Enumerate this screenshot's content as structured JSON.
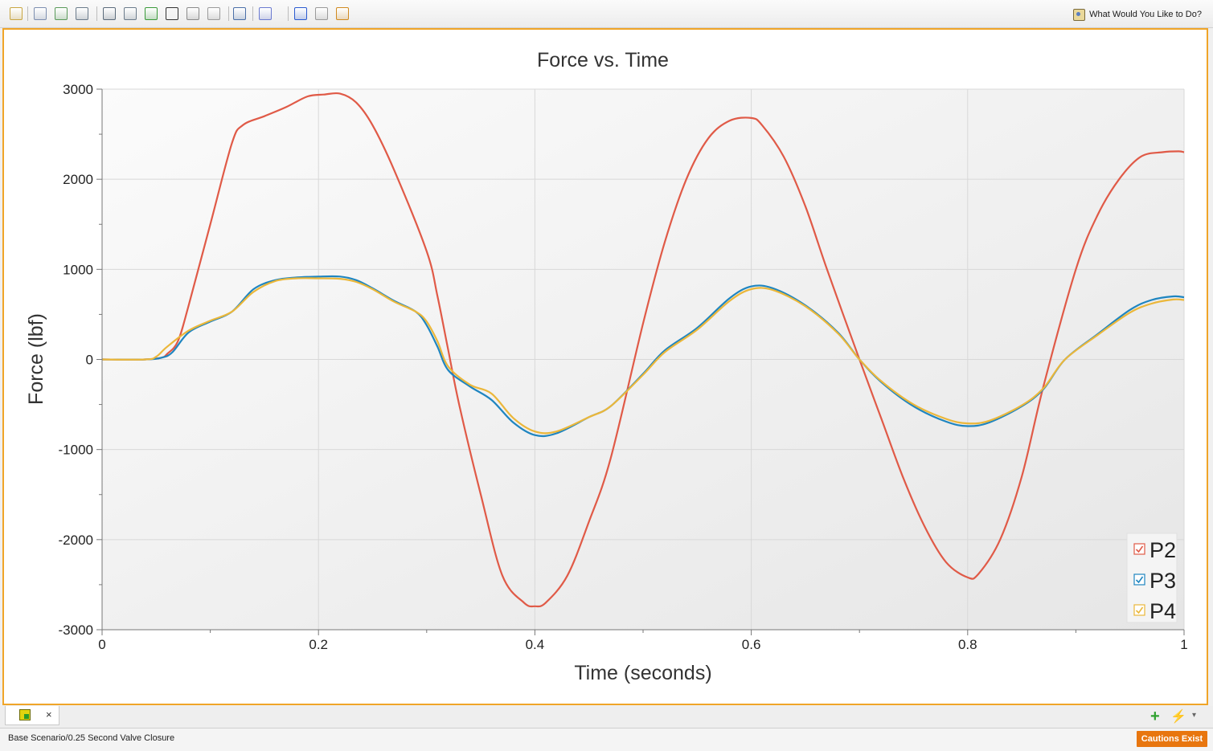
{
  "toolbar": {
    "buttons": [
      "edit-icon",
      "copy-icon",
      "export-icon",
      "table-icon",
      "chart-text-icon",
      "list-icon",
      "checklist-icon",
      "crosshair-icon",
      "ruler-icon",
      "stop-icon",
      "zoom-icon",
      "paint-icon",
      "add-icon",
      "graph-icon",
      "alert-icon"
    ],
    "help_label": "What Would You Like to Do?"
  },
  "chart_data": {
    "type": "line",
    "title": "Force vs. Time",
    "xlabel": "Time (seconds)",
    "ylabel": "Force (lbf)",
    "xlim": [
      0,
      1
    ],
    "ylim": [
      -3000,
      3000
    ],
    "xticks": [
      "0",
      "0.2",
      "0.4",
      "0.6",
      "0.8",
      "1"
    ],
    "yticks": [
      "3000",
      "2000",
      "1000",
      "0",
      "-1000",
      "-2000",
      "-3000"
    ],
    "grid": true,
    "legend_position": "bottom-right",
    "series": [
      {
        "name": "P2",
        "color": "#e05a47",
        "x": [
          0,
          0.04,
          0.055,
          0.06,
          0.07,
          0.08,
          0.1,
          0.12,
          0.13,
          0.15,
          0.17,
          0.19,
          0.205,
          0.22,
          0.235,
          0.25,
          0.27,
          0.3,
          0.31,
          0.32,
          0.33,
          0.35,
          0.37,
          0.39,
          0.4,
          0.41,
          0.43,
          0.45,
          0.47,
          0.5,
          0.52,
          0.54,
          0.56,
          0.58,
          0.6,
          0.61,
          0.63,
          0.65,
          0.67,
          0.7,
          0.72,
          0.74,
          0.76,
          0.78,
          0.8,
          0.81,
          0.83,
          0.85,
          0.87,
          0.9,
          0.92,
          0.94,
          0.96,
          0.98,
          0.995,
          1
        ],
        "y": [
          0,
          0,
          20,
          60,
          200,
          600,
          1500,
          2400,
          2600,
          2700,
          2800,
          2920,
          2940,
          2950,
          2850,
          2600,
          2100,
          1200,
          700,
          100,
          -500,
          -1500,
          -2400,
          -2700,
          -2740,
          -2700,
          -2400,
          -1800,
          -1100,
          400,
          1300,
          2000,
          2450,
          2650,
          2680,
          2600,
          2250,
          1700,
          1000,
          0,
          -650,
          -1300,
          -1850,
          -2250,
          -2420,
          -2380,
          -2000,
          -1300,
          -300,
          1000,
          1600,
          2000,
          2250,
          2300,
          2310,
          2300
        ]
      },
      {
        "name": "P3",
        "color": "#1f85c0",
        "x": [
          0,
          0.04,
          0.055,
          0.065,
          0.08,
          0.1,
          0.12,
          0.14,
          0.16,
          0.18,
          0.2,
          0.22,
          0.235,
          0.25,
          0.27,
          0.29,
          0.3,
          0.31,
          0.32,
          0.34,
          0.36,
          0.38,
          0.4,
          0.42,
          0.45,
          0.47,
          0.5,
          0.52,
          0.55,
          0.58,
          0.6,
          0.62,
          0.65,
          0.68,
          0.7,
          0.72,
          0.75,
          0.78,
          0.8,
          0.82,
          0.85,
          0.87,
          0.89,
          0.92,
          0.95,
          0.97,
          0.99,
          1
        ],
        "y": [
          0,
          0,
          20,
          80,
          300,
          420,
          530,
          780,
          880,
          910,
          920,
          920,
          880,
          790,
          650,
          530,
          380,
          140,
          -120,
          -300,
          -450,
          -700,
          -840,
          -820,
          -640,
          -520,
          -160,
          100,
          350,
          680,
          810,
          790,
          600,
          300,
          0,
          -250,
          -520,
          -690,
          -740,
          -700,
          -520,
          -330,
          0,
          280,
          550,
          660,
          700,
          690
        ]
      },
      {
        "name": "P4",
        "color": "#ebb73a",
        "x": [
          0,
          0.04,
          0.05,
          0.06,
          0.08,
          0.1,
          0.12,
          0.14,
          0.16,
          0.18,
          0.2,
          0.22,
          0.235,
          0.25,
          0.27,
          0.29,
          0.3,
          0.31,
          0.32,
          0.34,
          0.36,
          0.38,
          0.4,
          0.42,
          0.45,
          0.47,
          0.5,
          0.52,
          0.55,
          0.58,
          0.6,
          0.62,
          0.65,
          0.68,
          0.7,
          0.72,
          0.75,
          0.78,
          0.8,
          0.82,
          0.85,
          0.87,
          0.89,
          0.92,
          0.95,
          0.97,
          0.99,
          1
        ],
        "y": [
          0,
          0,
          30,
          140,
          320,
          430,
          530,
          750,
          870,
          900,
          900,
          895,
          860,
          780,
          640,
          530,
          420,
          200,
          -80,
          -280,
          -380,
          -650,
          -800,
          -800,
          -640,
          -520,
          -170,
          80,
          330,
          650,
          780,
          770,
          590,
          290,
          0,
          -240,
          -500,
          -660,
          -710,
          -680,
          -510,
          -320,
          0,
          270,
          520,
          620,
          665,
          660
        ]
      }
    ]
  },
  "tabs": {
    "close_label": "×",
    "plus_label": "+",
    "bolt_label": "⚡",
    "dropdown_label": "▾"
  },
  "status": {
    "text": "Base Scenario/0.25 Second Valve Closure",
    "cautions_label": "Cautions Exist"
  }
}
